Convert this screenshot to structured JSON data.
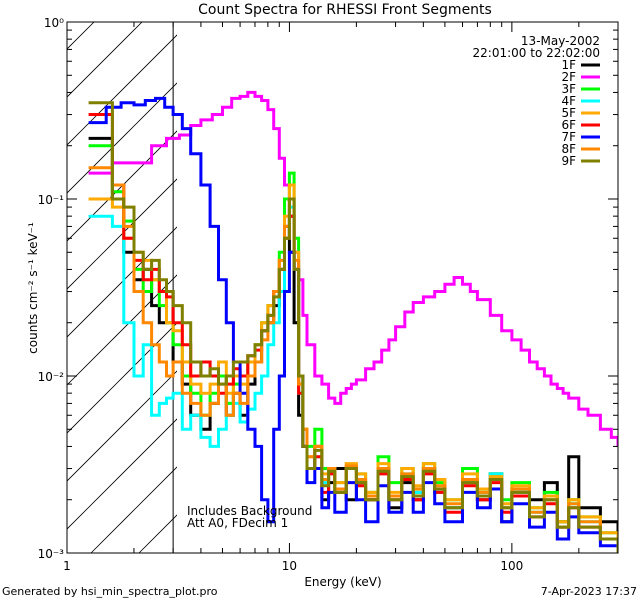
{
  "chart_data": {
    "type": "line",
    "title": "Count Spectra for RHESSI Front Segments",
    "xlabel": "Energy (keV)",
    "ylabel": "counts cm⁻² s⁻¹ keV⁻¹",
    "xscale": "log",
    "yscale": "log",
    "xlim": [
      1,
      300
    ],
    "ylim": [
      0.001,
      1
    ],
    "x_ticks": [
      {
        "value": 1,
        "label": "1"
      },
      {
        "value": 10,
        "label": "10"
      },
      {
        "value": 100,
        "label": "100"
      }
    ],
    "y_ticks": [
      {
        "value": 1,
        "label": "10⁰"
      },
      {
        "value": 0.1,
        "label": "10⁻¹"
      },
      {
        "value": 0.01,
        "label": "10⁻²"
      },
      {
        "value": 0.001,
        "label": "10⁻³"
      }
    ],
    "attenuator_shaded_below_keV": 3,
    "date": "13-May-2002",
    "time_range": "22:01:00 to 22:02:00",
    "annotations": [
      "Includes Background",
      "Att A0, FDecim 1"
    ],
    "footer_left": "Generated by hsi_min_spectra_plot.pro",
    "footer_right": "7-Apr-2023 17:37",
    "legend_position": "top-right",
    "series": [
      {
        "name": "1F",
        "color": "#000000",
        "x": [
          1.25,
          1.6,
          1.8,
          2.0,
          2.2,
          2.4,
          2.6,
          2.8,
          3.0,
          3.3,
          3.6,
          4.0,
          4.4,
          4.8,
          5.2,
          5.6,
          6.0,
          6.5,
          7.0,
          7.5,
          8.0,
          8.5,
          9.0,
          9.5,
          10.0,
          10.5,
          11.0,
          11.5,
          12.0,
          13.0,
          14.0,
          15.0,
          16.0,
          18.0,
          20.0,
          22.0,
          25.0,
          28.0,
          32.0,
          36.0,
          40.0,
          45.0,
          50.0,
          60.0,
          70.0,
          80.0,
          90.0,
          100.0,
          120.0,
          140.0,
          160.0,
          180.0,
          200.0,
          250.0,
          300.0
        ],
        "y": [
          0.22,
          0.1,
          0.05,
          0.035,
          0.04,
          0.025,
          0.02,
          0.03,
          0.012,
          0.009,
          0.006,
          0.005,
          0.007,
          0.01,
          0.006,
          0.008,
          0.006,
          0.009,
          0.012,
          0.018,
          0.02,
          0.025,
          0.04,
          0.07,
          0.05,
          0.02,
          0.006,
          0.004,
          0.003,
          0.004,
          0.002,
          0.0025,
          0.003,
          0.002,
          0.0025,
          0.002,
          0.003,
          0.0018,
          0.0025,
          0.002,
          0.003,
          0.0022,
          0.0018,
          0.0025,
          0.002,
          0.0028,
          0.0015,
          0.0022,
          0.002,
          0.0025,
          0.0015,
          0.0035,
          0.0018,
          0.0015,
          0.0012
        ]
      },
      {
        "name": "2F",
        "color": "#ff00ff",
        "x": [
          1.25,
          1.6,
          2.0,
          2.4,
          2.8,
          3.2,
          3.6,
          4.0,
          4.5,
          5.0,
          5.5,
          6.0,
          6.5,
          7.0,
          7.5,
          8.0,
          8.5,
          9.0,
          9.5,
          10.0,
          10.5,
          11.0,
          11.5,
          12.0,
          13.0,
          14.0,
          15.0,
          16.0,
          17.0,
          18.0,
          19.0,
          20.0,
          22.0,
          24.0,
          26.0,
          28.0,
          30.0,
          33.0,
          36.0,
          40.0,
          45.0,
          50.0,
          55.0,
          60.0,
          65.0,
          70.0,
          80.0,
          90.0,
          100.0,
          110.0,
          120.0,
          130.0,
          140.0,
          150.0,
          160.0,
          170.0,
          180.0,
          200.0,
          220.0,
          250.0,
          280.0,
          300.0
        ],
        "y": [
          0.14,
          0.16,
          0.16,
          0.2,
          0.22,
          0.23,
          0.26,
          0.28,
          0.3,
          0.33,
          0.37,
          0.38,
          0.4,
          0.38,
          0.36,
          0.32,
          0.25,
          0.17,
          0.12,
          0.08,
          0.05,
          0.035,
          0.022,
          0.015,
          0.01,
          0.009,
          0.0075,
          0.007,
          0.008,
          0.0085,
          0.009,
          0.0095,
          0.011,
          0.012,
          0.014,
          0.016,
          0.019,
          0.023,
          0.026,
          0.028,
          0.03,
          0.033,
          0.036,
          0.033,
          0.03,
          0.027,
          0.022,
          0.018,
          0.016,
          0.014,
          0.012,
          0.011,
          0.01,
          0.009,
          0.0085,
          0.008,
          0.0075,
          0.0065,
          0.006,
          0.005,
          0.0045,
          0.004
        ]
      },
      {
        "name": "3F",
        "color": "#00ff00",
        "x": [
          1.25,
          1.6,
          1.8,
          2.0,
          2.2,
          2.4,
          2.6,
          2.8,
          3.0,
          3.3,
          3.6,
          4.0,
          4.4,
          4.8,
          5.2,
          5.6,
          6.0,
          6.5,
          7.0,
          7.5,
          8.0,
          8.5,
          9.0,
          9.5,
          10.0,
          10.5,
          11.0,
          11.5,
          12.0,
          13.0,
          14.0,
          15.0,
          16.0,
          18.0,
          20.0,
          22.0,
          25.0,
          28.0,
          32.0,
          36.0,
          40.0,
          45.0,
          50.0,
          60.0,
          70.0,
          80.0,
          90.0,
          100.0,
          120.0,
          140.0,
          160.0,
          180.0,
          200.0,
          250.0,
          300.0
        ],
        "y": [
          0.2,
          0.11,
          0.075,
          0.04,
          0.03,
          0.035,
          0.025,
          0.02,
          0.015,
          0.01,
          0.008,
          0.006,
          0.008,
          0.01,
          0.007,
          0.009,
          0.01,
          0.012,
          0.015,
          0.02,
          0.025,
          0.03,
          0.05,
          0.1,
          0.14,
          0.06,
          0.01,
          0.005,
          0.004,
          0.005,
          0.003,
          0.003,
          0.0025,
          0.003,
          0.0028,
          0.0022,
          0.0035,
          0.0025,
          0.003,
          0.0022,
          0.0032,
          0.0025,
          0.002,
          0.003,
          0.0022,
          0.0028,
          0.002,
          0.0025,
          0.0018,
          0.0022,
          0.0015,
          0.002,
          0.0016,
          0.0013,
          0.0011
        ]
      },
      {
        "name": "4F",
        "color": "#00ffff",
        "x": [
          1.25,
          1.6,
          1.8,
          2.0,
          2.2,
          2.4,
          2.6,
          2.8,
          3.0,
          3.3,
          3.6,
          4.0,
          4.4,
          4.8,
          5.2,
          5.6,
          6.0,
          6.5,
          7.0,
          7.5,
          8.0,
          8.5,
          9.0,
          9.5,
          10.0,
          10.5,
          11.0,
          11.5,
          12.0,
          13.0,
          14.0,
          15.0,
          16.0,
          18.0,
          20.0,
          22.0,
          25.0,
          28.0,
          32.0,
          36.0,
          40.0,
          45.0,
          50.0,
          60.0,
          70.0,
          80.0,
          90.0,
          100.0,
          120.0,
          140.0,
          160.0,
          180.0,
          200.0,
          250.0,
          300.0
        ],
        "y": [
          0.08,
          0.07,
          0.02,
          0.01,
          0.015,
          0.006,
          0.007,
          0.0075,
          0.008,
          0.005,
          0.006,
          0.0045,
          0.004,
          0.005,
          0.006,
          0.007,
          0.0055,
          0.0065,
          0.008,
          0.01,
          0.015,
          0.02,
          0.03,
          0.06,
          0.09,
          0.04,
          0.008,
          0.004,
          0.003,
          0.0035,
          0.0025,
          0.003,
          0.0022,
          0.003,
          0.0025,
          0.002,
          0.003,
          0.002,
          0.0028,
          0.0022,
          0.003,
          0.0022,
          0.0018,
          0.0025,
          0.0022,
          0.0028,
          0.0018,
          0.0022,
          0.0017,
          0.002,
          0.0014,
          0.0019,
          0.0015,
          0.0012,
          0.001
        ]
      },
      {
        "name": "5F",
        "color": "#ffaa00",
        "x": [
          1.25,
          1.6,
          1.8,
          2.0,
          2.2,
          2.4,
          2.6,
          2.8,
          3.0,
          3.3,
          3.6,
          4.0,
          4.4,
          4.8,
          5.2,
          5.6,
          6.0,
          6.5,
          7.0,
          7.5,
          8.0,
          8.5,
          9.0,
          9.5,
          10.0,
          10.5,
          11.0,
          11.5,
          12.0,
          13.0,
          14.0,
          15.0,
          16.0,
          18.0,
          20.0,
          22.0,
          25.0,
          28.0,
          32.0,
          36.0,
          40.0,
          45.0,
          50.0,
          60.0,
          70.0,
          80.0,
          90.0,
          100.0,
          120.0,
          140.0,
          160.0,
          180.0,
          200.0,
          250.0,
          300.0
        ],
        "y": [
          0.1,
          0.09,
          0.06,
          0.05,
          0.045,
          0.035,
          0.03,
          0.02,
          0.018,
          0.012,
          0.009,
          0.008,
          0.009,
          0.012,
          0.008,
          0.01,
          0.009,
          0.012,
          0.015,
          0.02,
          0.025,
          0.03,
          0.045,
          0.08,
          0.12,
          0.05,
          0.009,
          0.005,
          0.0035,
          0.004,
          0.0028,
          0.003,
          0.0025,
          0.0032,
          0.0028,
          0.0022,
          0.0032,
          0.0022,
          0.003,
          0.0024,
          0.0032,
          0.0026,
          0.002,
          0.0028,
          0.0023,
          0.0027,
          0.0019,
          0.0024,
          0.0018,
          0.0021,
          0.0015,
          0.002,
          0.0016,
          0.0013,
          0.0011
        ]
      },
      {
        "name": "6F",
        "color": "#ff0000",
        "x": [
          1.25,
          1.6,
          1.8,
          2.0,
          2.2,
          2.4,
          2.6,
          2.8,
          3.0,
          3.3,
          3.6,
          4.0,
          4.4,
          4.8,
          5.2,
          5.6,
          6.0,
          6.5,
          7.0,
          7.5,
          8.0,
          8.5,
          9.0,
          9.5,
          10.0,
          10.5,
          11.0,
          11.5,
          12.0,
          13.0,
          14.0,
          15.0,
          16.0,
          18.0,
          20.0,
          22.0,
          25.0,
          28.0,
          32.0,
          36.0,
          40.0,
          45.0,
          50.0,
          60.0,
          70.0,
          80.0,
          90.0,
          100.0,
          120.0,
          140.0,
          160.0,
          180.0,
          200.0,
          250.0,
          300.0
        ],
        "y": [
          0.3,
          0.12,
          0.06,
          0.045,
          0.035,
          0.04,
          0.03,
          0.028,
          0.02,
          0.015,
          0.01,
          0.012,
          0.01,
          0.008,
          0.009,
          0.011,
          0.01,
          0.013,
          0.014,
          0.018,
          0.022,
          0.03,
          0.04,
          0.06,
          0.08,
          0.04,
          0.008,
          0.004,
          0.003,
          0.0035,
          0.0022,
          0.0028,
          0.0022,
          0.003,
          0.0024,
          0.002,
          0.0028,
          0.002,
          0.0026,
          0.002,
          0.0028,
          0.0022,
          0.0017,
          0.0024,
          0.002,
          0.0025,
          0.0017,
          0.0021,
          0.0016,
          0.0019,
          0.0014,
          0.0018,
          0.0014,
          0.0012,
          0.001
        ]
      },
      {
        "name": "7F",
        "color": "#0000ff",
        "x": [
          1.25,
          1.5,
          1.75,
          2.0,
          2.25,
          2.5,
          2.75,
          3.0,
          3.3,
          3.6,
          4.0,
          4.4,
          4.8,
          5.2,
          5.6,
          6.0,
          6.5,
          7.0,
          7.5,
          8.0,
          8.5,
          9.0,
          9.5,
          10.0,
          10.5,
          11.0,
          11.5,
          12.0,
          13.0,
          14.0,
          15.0,
          16.0,
          18.0,
          20.0,
          22.0,
          25.0,
          28.0,
          32.0,
          36.0,
          40.0,
          45.0,
          50.0,
          60.0,
          70.0,
          80.0,
          90.0,
          100.0,
          120.0,
          140.0,
          160.0,
          180.0,
          200.0,
          250.0,
          300.0
        ],
        "y": [
          0.27,
          0.33,
          0.35,
          0.34,
          0.36,
          0.37,
          0.33,
          0.3,
          0.25,
          0.18,
          0.12,
          0.07,
          0.035,
          0.02,
          0.012,
          0.008,
          0.005,
          0.004,
          0.002,
          0.0015,
          0.005,
          0.01,
          0.03,
          0.05,
          0.04,
          0.01,
          0.004,
          0.0025,
          0.003,
          0.0018,
          0.0022,
          0.0017,
          0.0025,
          0.002,
          0.0015,
          0.0024,
          0.0017,
          0.0022,
          0.0017,
          0.0025,
          0.0019,
          0.0015,
          0.0022,
          0.0018,
          0.0023,
          0.0015,
          0.0019,
          0.0014,
          0.0017,
          0.0012,
          0.0016,
          0.0013,
          0.0011,
          0.001
        ]
      },
      {
        "name": "8F",
        "color": "#ff8800",
        "x": [
          1.25,
          1.6,
          1.8,
          2.0,
          2.2,
          2.4,
          2.6,
          2.8,
          3.0,
          3.3,
          3.6,
          4.0,
          4.4,
          4.8,
          5.2,
          5.6,
          6.0,
          6.5,
          7.0,
          7.5,
          8.0,
          8.5,
          9.0,
          9.5,
          10.0,
          10.5,
          11.0,
          11.5,
          12.0,
          13.0,
          14.0,
          15.0,
          16.0,
          18.0,
          20.0,
          22.0,
          25.0,
          28.0,
          32.0,
          36.0,
          40.0,
          45.0,
          50.0,
          60.0,
          70.0,
          80.0,
          90.0,
          100.0,
          120.0,
          140.0,
          160.0,
          180.0,
          200.0,
          250.0,
          300.0
        ],
        "y": [
          0.15,
          0.12,
          0.07,
          0.03,
          0.02,
          0.015,
          0.012,
          0.01,
          0.012,
          0.008,
          0.007,
          0.006,
          0.007,
          0.009,
          0.006,
          0.008,
          0.007,
          0.01,
          0.012,
          0.016,
          0.02,
          0.03,
          0.045,
          0.07,
          0.1,
          0.045,
          0.009,
          0.005,
          0.0035,
          0.004,
          0.0026,
          0.003,
          0.0023,
          0.0031,
          0.0026,
          0.0021,
          0.003,
          0.0021,
          0.0028,
          0.0023,
          0.003,
          0.0024,
          0.0019,
          0.0026,
          0.0022,
          0.0026,
          0.0018,
          0.0023,
          0.0017,
          0.002,
          0.0014,
          0.0019,
          0.0015,
          0.0012,
          0.001
        ]
      },
      {
        "name": "9F",
        "color": "#808000",
        "x": [
          1.25,
          1.6,
          1.8,
          2.0,
          2.2,
          2.4,
          2.6,
          2.8,
          3.0,
          3.3,
          3.6,
          4.0,
          4.4,
          4.8,
          5.2,
          5.6,
          6.0,
          6.5,
          7.0,
          7.5,
          8.0,
          8.5,
          9.0,
          9.5,
          10.0,
          10.5,
          11.0,
          11.5,
          12.0,
          13.0,
          14.0,
          15.0,
          16.0,
          18.0,
          20.0,
          22.0,
          25.0,
          28.0,
          32.0,
          36.0,
          40.0,
          45.0,
          50.0,
          60.0,
          70.0,
          80.0,
          90.0,
          100.0,
          120.0,
          140.0,
          160.0,
          180.0,
          200.0,
          250.0,
          300.0
        ],
        "y": [
          0.35,
          0.1,
          0.09,
          0.05,
          0.04,
          0.045,
          0.035,
          0.03,
          0.025,
          0.02,
          0.012,
          0.01,
          0.011,
          0.009,
          0.01,
          0.012,
          0.012,
          0.013,
          0.015,
          0.018,
          0.022,
          0.028,
          0.04,
          0.06,
          0.1,
          0.04,
          0.01,
          0.004,
          0.003,
          0.0038,
          0.0024,
          0.0029,
          0.0022,
          0.003,
          0.0025,
          0.002,
          0.0029,
          0.002,
          0.0027,
          0.0021,
          0.0029,
          0.0023,
          0.0018,
          0.0025,
          0.0021,
          0.0026,
          0.0018,
          0.0022,
          0.0016,
          0.002,
          0.0014,
          0.0018,
          0.0014,
          0.0012,
          0.001
        ]
      }
    ]
  }
}
